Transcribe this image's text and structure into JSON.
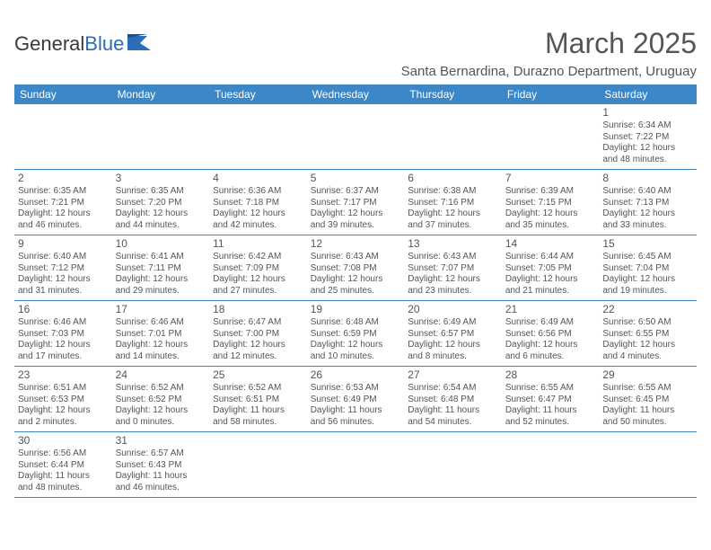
{
  "logo": {
    "text_a": "General",
    "text_b": "Blue",
    "shape_color": "#2a6db8"
  },
  "title": "March 2025",
  "location": "Santa Bernardina, Durazno Department, Uruguay",
  "colors": {
    "header_bg": "#3c87c7",
    "header_text": "#ffffff",
    "cell_border": "#3c87c7",
    "body_text": "#555555",
    "background": "#ffffff"
  },
  "day_headers": [
    "Sunday",
    "Monday",
    "Tuesday",
    "Wednesday",
    "Thursday",
    "Friday",
    "Saturday"
  ],
  "weeks": [
    [
      null,
      null,
      null,
      null,
      null,
      null,
      {
        "n": "1",
        "sr": "Sunrise: 6:34 AM",
        "ss": "Sunset: 7:22 PM",
        "d1": "Daylight: 12 hours",
        "d2": "and 48 minutes."
      }
    ],
    [
      {
        "n": "2",
        "sr": "Sunrise: 6:35 AM",
        "ss": "Sunset: 7:21 PM",
        "d1": "Daylight: 12 hours",
        "d2": "and 46 minutes."
      },
      {
        "n": "3",
        "sr": "Sunrise: 6:35 AM",
        "ss": "Sunset: 7:20 PM",
        "d1": "Daylight: 12 hours",
        "d2": "and 44 minutes."
      },
      {
        "n": "4",
        "sr": "Sunrise: 6:36 AM",
        "ss": "Sunset: 7:18 PM",
        "d1": "Daylight: 12 hours",
        "d2": "and 42 minutes."
      },
      {
        "n": "5",
        "sr": "Sunrise: 6:37 AM",
        "ss": "Sunset: 7:17 PM",
        "d1": "Daylight: 12 hours",
        "d2": "and 39 minutes."
      },
      {
        "n": "6",
        "sr": "Sunrise: 6:38 AM",
        "ss": "Sunset: 7:16 PM",
        "d1": "Daylight: 12 hours",
        "d2": "and 37 minutes."
      },
      {
        "n": "7",
        "sr": "Sunrise: 6:39 AM",
        "ss": "Sunset: 7:15 PM",
        "d1": "Daylight: 12 hours",
        "d2": "and 35 minutes."
      },
      {
        "n": "8",
        "sr": "Sunrise: 6:40 AM",
        "ss": "Sunset: 7:13 PM",
        "d1": "Daylight: 12 hours",
        "d2": "and 33 minutes."
      }
    ],
    [
      {
        "n": "9",
        "sr": "Sunrise: 6:40 AM",
        "ss": "Sunset: 7:12 PM",
        "d1": "Daylight: 12 hours",
        "d2": "and 31 minutes."
      },
      {
        "n": "10",
        "sr": "Sunrise: 6:41 AM",
        "ss": "Sunset: 7:11 PM",
        "d1": "Daylight: 12 hours",
        "d2": "and 29 minutes."
      },
      {
        "n": "11",
        "sr": "Sunrise: 6:42 AM",
        "ss": "Sunset: 7:09 PM",
        "d1": "Daylight: 12 hours",
        "d2": "and 27 minutes."
      },
      {
        "n": "12",
        "sr": "Sunrise: 6:43 AM",
        "ss": "Sunset: 7:08 PM",
        "d1": "Daylight: 12 hours",
        "d2": "and 25 minutes."
      },
      {
        "n": "13",
        "sr": "Sunrise: 6:43 AM",
        "ss": "Sunset: 7:07 PM",
        "d1": "Daylight: 12 hours",
        "d2": "and 23 minutes."
      },
      {
        "n": "14",
        "sr": "Sunrise: 6:44 AM",
        "ss": "Sunset: 7:05 PM",
        "d1": "Daylight: 12 hours",
        "d2": "and 21 minutes."
      },
      {
        "n": "15",
        "sr": "Sunrise: 6:45 AM",
        "ss": "Sunset: 7:04 PM",
        "d1": "Daylight: 12 hours",
        "d2": "and 19 minutes."
      }
    ],
    [
      {
        "n": "16",
        "sr": "Sunrise: 6:46 AM",
        "ss": "Sunset: 7:03 PM",
        "d1": "Daylight: 12 hours",
        "d2": "and 17 minutes."
      },
      {
        "n": "17",
        "sr": "Sunrise: 6:46 AM",
        "ss": "Sunset: 7:01 PM",
        "d1": "Daylight: 12 hours",
        "d2": "and 14 minutes."
      },
      {
        "n": "18",
        "sr": "Sunrise: 6:47 AM",
        "ss": "Sunset: 7:00 PM",
        "d1": "Daylight: 12 hours",
        "d2": "and 12 minutes."
      },
      {
        "n": "19",
        "sr": "Sunrise: 6:48 AM",
        "ss": "Sunset: 6:59 PM",
        "d1": "Daylight: 12 hours",
        "d2": "and 10 minutes."
      },
      {
        "n": "20",
        "sr": "Sunrise: 6:49 AM",
        "ss": "Sunset: 6:57 PM",
        "d1": "Daylight: 12 hours",
        "d2": "and 8 minutes."
      },
      {
        "n": "21",
        "sr": "Sunrise: 6:49 AM",
        "ss": "Sunset: 6:56 PM",
        "d1": "Daylight: 12 hours",
        "d2": "and 6 minutes."
      },
      {
        "n": "22",
        "sr": "Sunrise: 6:50 AM",
        "ss": "Sunset: 6:55 PM",
        "d1": "Daylight: 12 hours",
        "d2": "and 4 minutes."
      }
    ],
    [
      {
        "n": "23",
        "sr": "Sunrise: 6:51 AM",
        "ss": "Sunset: 6:53 PM",
        "d1": "Daylight: 12 hours",
        "d2": "and 2 minutes."
      },
      {
        "n": "24",
        "sr": "Sunrise: 6:52 AM",
        "ss": "Sunset: 6:52 PM",
        "d1": "Daylight: 12 hours",
        "d2": "and 0 minutes."
      },
      {
        "n": "25",
        "sr": "Sunrise: 6:52 AM",
        "ss": "Sunset: 6:51 PM",
        "d1": "Daylight: 11 hours",
        "d2": "and 58 minutes."
      },
      {
        "n": "26",
        "sr": "Sunrise: 6:53 AM",
        "ss": "Sunset: 6:49 PM",
        "d1": "Daylight: 11 hours",
        "d2": "and 56 minutes."
      },
      {
        "n": "27",
        "sr": "Sunrise: 6:54 AM",
        "ss": "Sunset: 6:48 PM",
        "d1": "Daylight: 11 hours",
        "d2": "and 54 minutes."
      },
      {
        "n": "28",
        "sr": "Sunrise: 6:55 AM",
        "ss": "Sunset: 6:47 PM",
        "d1": "Daylight: 11 hours",
        "d2": "and 52 minutes."
      },
      {
        "n": "29",
        "sr": "Sunrise: 6:55 AM",
        "ss": "Sunset: 6:45 PM",
        "d1": "Daylight: 11 hours",
        "d2": "and 50 minutes."
      }
    ],
    [
      {
        "n": "30",
        "sr": "Sunrise: 6:56 AM",
        "ss": "Sunset: 6:44 PM",
        "d1": "Daylight: 11 hours",
        "d2": "and 48 minutes."
      },
      {
        "n": "31",
        "sr": "Sunrise: 6:57 AM",
        "ss": "Sunset: 6:43 PM",
        "d1": "Daylight: 11 hours",
        "d2": "and 46 minutes."
      },
      null,
      null,
      null,
      null,
      null
    ]
  ]
}
